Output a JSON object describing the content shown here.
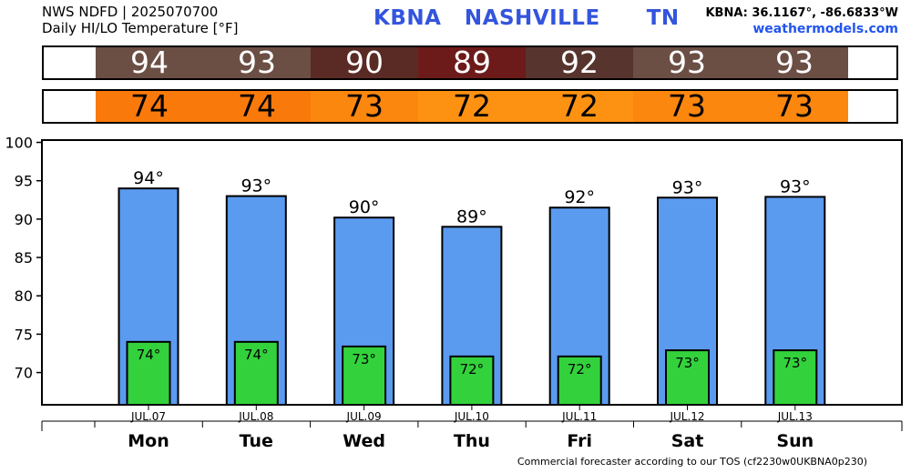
{
  "header": {
    "line1": "NWS NDFD | 2025070700",
    "line2": "Daily HI/LO Temperature [°F]",
    "station": "KBNA   NASHVILLE      TN",
    "coords": "KBNA: 36.1167°, -86.6833°W",
    "site": "weathermodels.com"
  },
  "strips": {
    "hi": [
      {
        "label": "94",
        "color": "#6b4e44",
        "text_color": "#ffffff"
      },
      {
        "label": "93",
        "color": "#6b4e44",
        "text_color": "#ffffff"
      },
      {
        "label": "90",
        "color": "#5a2a24",
        "text_color": "#ffffff"
      },
      {
        "label": "89",
        "color": "#6d1a1a",
        "text_color": "#ffffff"
      },
      {
        "label": "92",
        "color": "#57352e",
        "text_color": "#ffffff"
      },
      {
        "label": "93",
        "color": "#6b4e44",
        "text_color": "#ffffff"
      },
      {
        "label": "93",
        "color": "#6b4e44",
        "text_color": "#ffffff"
      }
    ],
    "lo": [
      {
        "label": "74",
        "color": "#f97a0b",
        "text_color": "#000000"
      },
      {
        "label": "74",
        "color": "#f97a0b",
        "text_color": "#000000"
      },
      {
        "label": "73",
        "color": "#fb870f",
        "text_color": "#000000"
      },
      {
        "label": "72",
        "color": "#fd9212",
        "text_color": "#000000"
      },
      {
        "label": "72",
        "color": "#fd9212",
        "text_color": "#000000"
      },
      {
        "label": "73",
        "color": "#fb870f",
        "text_color": "#000000"
      },
      {
        "label": "73",
        "color": "#fb870f",
        "text_color": "#000000"
      }
    ]
  },
  "chart_data": {
    "type": "bar",
    "categories": [
      "JUL.07",
      "JUL.08",
      "JUL.09",
      "JUL.10",
      "JUL.11",
      "JUL.12",
      "JUL.13"
    ],
    "days": [
      "Mon",
      "Tue",
      "Wed",
      "Thu",
      "Fri",
      "Sat",
      "Sun"
    ],
    "series": [
      {
        "values": [
          94,
          93,
          90.2,
          89,
          91.5,
          92.8,
          92.9
        ],
        "labels": [
          "94°",
          "93°",
          "90°",
          "89°",
          "92°",
          "93°",
          "93°"
        ],
        "color": "#5b9bef"
      },
      {
        "values": [
          74,
          74,
          73.4,
          72.1,
          72.1,
          72.9,
          72.9
        ],
        "labels": [
          "74°",
          "74°",
          "73°",
          "72°",
          "72°",
          "73°",
          "73°"
        ],
        "color": "#33d23c"
      }
    ],
    "ylim": [
      65.8,
      100.3
    ],
    "yticks": [
      70,
      75,
      80,
      85,
      90,
      95,
      100
    ],
    "ytick_labels": [
      "70",
      "75",
      "80",
      "85",
      "90",
      "95",
      "100"
    ]
  },
  "footer": "Commercial forecaster according to our TOS (cf2230w0UKBNA0p230)"
}
